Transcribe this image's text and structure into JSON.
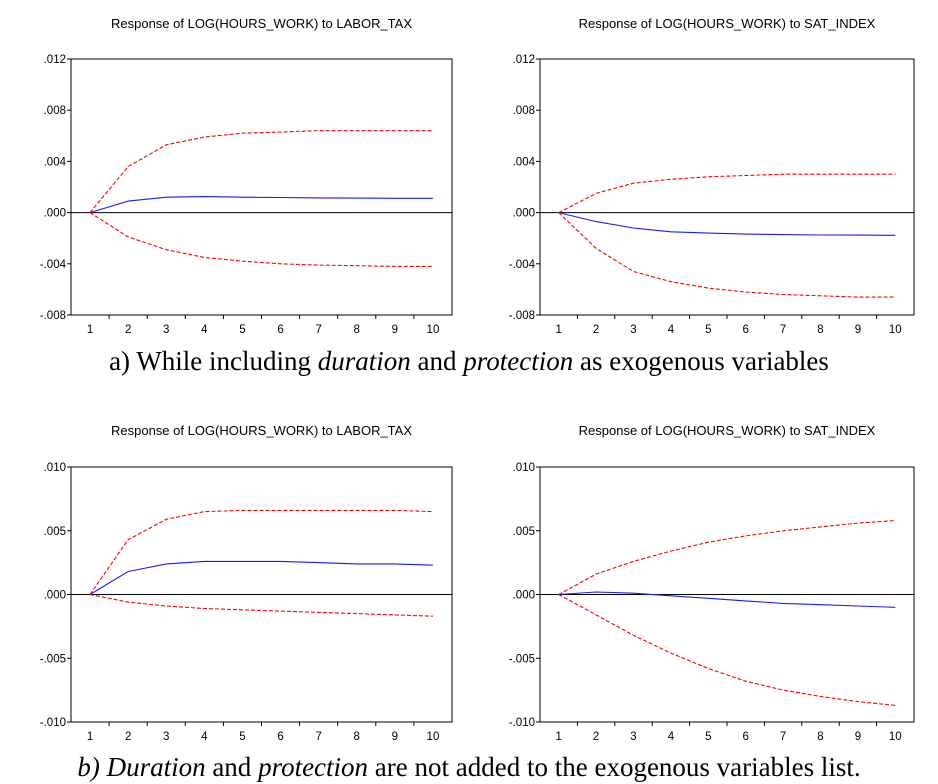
{
  "chart_data": [
    {
      "type": "line",
      "title": "Response of LOG(HOURS_WORK) to LABOR_TAX",
      "xlabel": "",
      "ylabel": "",
      "x": [
        1,
        2,
        3,
        4,
        5,
        6,
        7,
        8,
        9,
        10
      ],
      "xlim": [
        0.5,
        10.5
      ],
      "ylim": [
        -0.008,
        0.012
      ],
      "yticks": [
        -0.008,
        -0.004,
        0.0,
        0.004,
        0.008,
        0.012
      ],
      "ytick_labels": [
        "-.008",
        "-.004",
        ".000",
        ".004",
        ".008",
        ".012"
      ],
      "grid": false,
      "series": [
        {
          "role": "response",
          "color": "#1a1aff",
          "style": "solid",
          "values": [
            0.0,
            0.0009,
            0.0012,
            0.00125,
            0.0012,
            0.00118,
            0.00115,
            0.00113,
            0.00112,
            0.00112
          ]
        },
        {
          "role": "upper-band",
          "color": "#ff0000",
          "style": "dashed",
          "values": [
            0.0,
            0.0036,
            0.0053,
            0.0059,
            0.0062,
            0.0063,
            0.0064,
            0.0064,
            0.0064,
            0.0064
          ]
        },
        {
          "role": "lower-band",
          "color": "#ff0000",
          "style": "dashed",
          "values": [
            0.0,
            -0.0019,
            -0.0029,
            -0.0035,
            -0.0038,
            -0.004,
            -0.0041,
            -0.00415,
            -0.0042,
            -0.0042
          ]
        }
      ]
    },
    {
      "type": "line",
      "title": "Response of LOG(HOURS_WORK) to SAT_INDEX",
      "xlabel": "",
      "ylabel": "",
      "x": [
        1,
        2,
        3,
        4,
        5,
        6,
        7,
        8,
        9,
        10
      ],
      "xlim": [
        0.5,
        10.5
      ],
      "ylim": [
        -0.008,
        0.012
      ],
      "yticks": [
        -0.008,
        -0.004,
        0.0,
        0.004,
        0.008,
        0.012
      ],
      "ytick_labels": [
        "-.008",
        "-.004",
        ".000",
        ".004",
        ".008",
        ".012"
      ],
      "grid": false,
      "series": [
        {
          "role": "response",
          "color": "#1a1aff",
          "style": "solid",
          "values": [
            0.0,
            -0.0007,
            -0.0012,
            -0.0015,
            -0.0016,
            -0.00168,
            -0.00172,
            -0.00175,
            -0.00176,
            -0.00177
          ]
        },
        {
          "role": "upper-band",
          "color": "#ff0000",
          "style": "dashed",
          "values": [
            0.0,
            0.0015,
            0.0023,
            0.0026,
            0.0028,
            0.0029,
            0.003,
            0.003,
            0.003,
            0.003
          ]
        },
        {
          "role": "lower-band",
          "color": "#ff0000",
          "style": "dashed",
          "values": [
            0.0,
            -0.0028,
            -0.0046,
            -0.0054,
            -0.0059,
            -0.0062,
            -0.0064,
            -0.0065,
            -0.0066,
            -0.0066
          ]
        }
      ]
    },
    {
      "type": "line",
      "title": "Response of LOG(HOURS_WORK) to LABOR_TAX",
      "xlabel": "",
      "ylabel": "",
      "x": [
        1,
        2,
        3,
        4,
        5,
        6,
        7,
        8,
        9,
        10
      ],
      "xlim": [
        0.5,
        10.5
      ],
      "ylim": [
        -0.01,
        0.01
      ],
      "yticks": [
        -0.01,
        -0.005,
        0.0,
        0.005,
        0.01
      ],
      "ytick_labels": [
        "-.010",
        "-.005",
        ".000",
        ".005",
        ".010"
      ],
      "grid": false,
      "series": [
        {
          "role": "response",
          "color": "#1a1aff",
          "style": "solid",
          "values": [
            0.0,
            0.0018,
            0.0024,
            0.0026,
            0.0026,
            0.0026,
            0.0025,
            0.0024,
            0.0024,
            0.0023
          ]
        },
        {
          "role": "upper-band",
          "color": "#ff0000",
          "style": "dashed",
          "values": [
            0.0,
            0.0043,
            0.0059,
            0.0065,
            0.0066,
            0.0066,
            0.0066,
            0.0066,
            0.0066,
            0.0065
          ]
        },
        {
          "role": "lower-band",
          "color": "#ff0000",
          "style": "dashed",
          "values": [
            0.0,
            -0.0006,
            -0.0009,
            -0.0011,
            -0.0012,
            -0.0013,
            -0.0014,
            -0.0015,
            -0.0016,
            -0.0017
          ]
        }
      ]
    },
    {
      "type": "line",
      "title": "Response of LOG(HOURS_WORK) to SAT_INDEX",
      "xlabel": "",
      "ylabel": "",
      "x": [
        1,
        2,
        3,
        4,
        5,
        6,
        7,
        8,
        9,
        10
      ],
      "xlim": [
        0.5,
        10.5
      ],
      "ylim": [
        -0.01,
        0.01
      ],
      "yticks": [
        -0.01,
        -0.005,
        0.0,
        0.005,
        0.01
      ],
      "ytick_labels": [
        "-.010",
        "-.005",
        ".000",
        ".005",
        ".010"
      ],
      "grid": false,
      "series": [
        {
          "role": "response",
          "color": "#1a1aff",
          "style": "solid",
          "values": [
            0.0,
            0.0002,
            0.0001,
            -0.0001,
            -0.0003,
            -0.0005,
            -0.0007,
            -0.0008,
            -0.0009,
            -0.001
          ]
        },
        {
          "role": "upper-band",
          "color": "#ff0000",
          "style": "dashed",
          "values": [
            0.0,
            0.0016,
            0.0026,
            0.0034,
            0.0041,
            0.0046,
            0.005,
            0.0053,
            0.0056,
            0.0058
          ]
        },
        {
          "role": "lower-band",
          "color": "#ff0000",
          "style": "dashed",
          "values": [
            0.0,
            -0.0016,
            -0.0032,
            -0.0046,
            -0.0058,
            -0.0068,
            -0.0075,
            -0.008,
            -0.0084,
            -0.0087
          ]
        }
      ]
    }
  ],
  "captions": {
    "a_prefix": "a) While including ",
    "a_em1": "duration",
    "a_mid": " and ",
    "a_em2": "protection",
    "a_suffix": " as exogenous variables",
    "b_em1": "b) Duration",
    "b_mid": " and ",
    "b_em2": "protection",
    "b_suffix": " are not added to the exogenous variables list."
  }
}
